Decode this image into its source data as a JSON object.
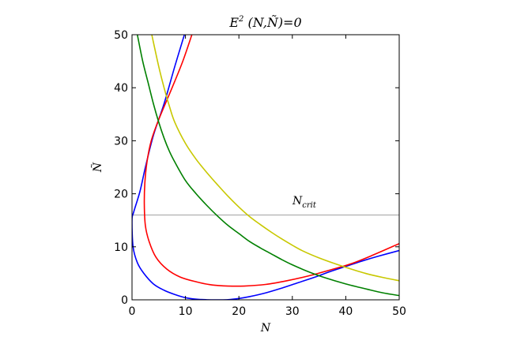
{
  "chart_data": {
    "type": "line",
    "title": "E² (N,Ñ)=0",
    "xlabel": "N",
    "ylabel": "Ñ",
    "xlim": [
      0,
      50
    ],
    "ylim": [
      0,
      50
    ],
    "xticks": [
      0,
      10,
      20,
      30,
      40,
      50
    ],
    "yticks": [
      0,
      10,
      20,
      30,
      40,
      50
    ],
    "grid": false,
    "hline": {
      "y": 16,
      "label": "N_crit",
      "color": "#b0b0b0"
    },
    "series": [
      {
        "color": "#0000ff",
        "points": [
          [
            9.8,
            50
          ],
          [
            8,
            44
          ],
          [
            6,
            37
          ],
          [
            4,
            31
          ],
          [
            2.5,
            25
          ],
          [
            1.5,
            20.5
          ],
          [
            0.3,
            16.5
          ],
          [
            0,
            15
          ],
          [
            0.2,
            10
          ],
          [
            1,
            7
          ],
          [
            2.2,
            5
          ],
          [
            4,
            3
          ],
          [
            6,
            1.8
          ],
          [
            8,
            1
          ],
          [
            10,
            0.4
          ],
          [
            12,
            0.12
          ],
          [
            14,
            0.02
          ],
          [
            16,
            0
          ],
          [
            18,
            0.03
          ],
          [
            20,
            0.25
          ],
          [
            22,
            0.6
          ],
          [
            25,
            1.3
          ],
          [
            28,
            2.2
          ],
          [
            31,
            3.2
          ],
          [
            34,
            4.2
          ],
          [
            37,
            5.3
          ],
          [
            40,
            6.3
          ],
          [
            43,
            7.3
          ],
          [
            46,
            8.2
          ],
          [
            50,
            9.3
          ]
        ]
      },
      {
        "color": "#ff0000",
        "points": [
          [
            11.2,
            50
          ],
          [
            9.5,
            45
          ],
          [
            7.5,
            40
          ],
          [
            5,
            34
          ],
          [
            3.6,
            30
          ],
          [
            2.8,
            26
          ],
          [
            2.4,
            22
          ],
          [
            2.3,
            18
          ],
          [
            2.5,
            14
          ],
          [
            3.2,
            11
          ],
          [
            4.5,
            8
          ],
          [
            6.5,
            5.8
          ],
          [
            9,
            4.3
          ],
          [
            12,
            3.4
          ],
          [
            15,
            2.8
          ],
          [
            18,
            2.6
          ],
          [
            21,
            2.6
          ],
          [
            25,
            2.9
          ],
          [
            29,
            3.6
          ],
          [
            33,
            4.5
          ],
          [
            37,
            5.6
          ],
          [
            41,
            6.8
          ],
          [
            45,
            8.4
          ],
          [
            50,
            10.6
          ]
        ]
      },
      {
        "color": "#008000",
        "points": [
          [
            1,
            50
          ],
          [
            2,
            45
          ],
          [
            3,
            41
          ],
          [
            4,
            37
          ],
          [
            5,
            33.5
          ],
          [
            6,
            30.5
          ],
          [
            7,
            28
          ],
          [
            8,
            26
          ],
          [
            10,
            22.5
          ],
          [
            12,
            20
          ],
          [
            14,
            17.8
          ],
          [
            16,
            15.8
          ],
          [
            18,
            14
          ],
          [
            20,
            12.5
          ],
          [
            22,
            11
          ],
          [
            24,
            9.8
          ],
          [
            26,
            8.7
          ],
          [
            28,
            7.6
          ],
          [
            30,
            6.6
          ],
          [
            33,
            5.3
          ],
          [
            36,
            4.2
          ],
          [
            40,
            3
          ],
          [
            44,
            2
          ],
          [
            47,
            1.3
          ],
          [
            50,
            0.8
          ]
        ]
      },
      {
        "color": "#c8c800",
        "points": [
          [
            3.7,
            50
          ],
          [
            5,
            44
          ],
          [
            6,
            40
          ],
          [
            7,
            36.5
          ],
          [
            8,
            33.5
          ],
          [
            10,
            29.5
          ],
          [
            12,
            26.5
          ],
          [
            14,
            24
          ],
          [
            16,
            21.7
          ],
          [
            18,
            19.5
          ],
          [
            20,
            17.5
          ],
          [
            22,
            15.7
          ],
          [
            24,
            14.2
          ],
          [
            26,
            12.8
          ],
          [
            28,
            11.5
          ],
          [
            30,
            10.3
          ],
          [
            32,
            9.2
          ],
          [
            35,
            7.9
          ],
          [
            38,
            6.8
          ],
          [
            41,
            5.8
          ],
          [
            44,
            4.9
          ],
          [
            47,
            4.2
          ],
          [
            50,
            3.6
          ]
        ]
      }
    ]
  }
}
